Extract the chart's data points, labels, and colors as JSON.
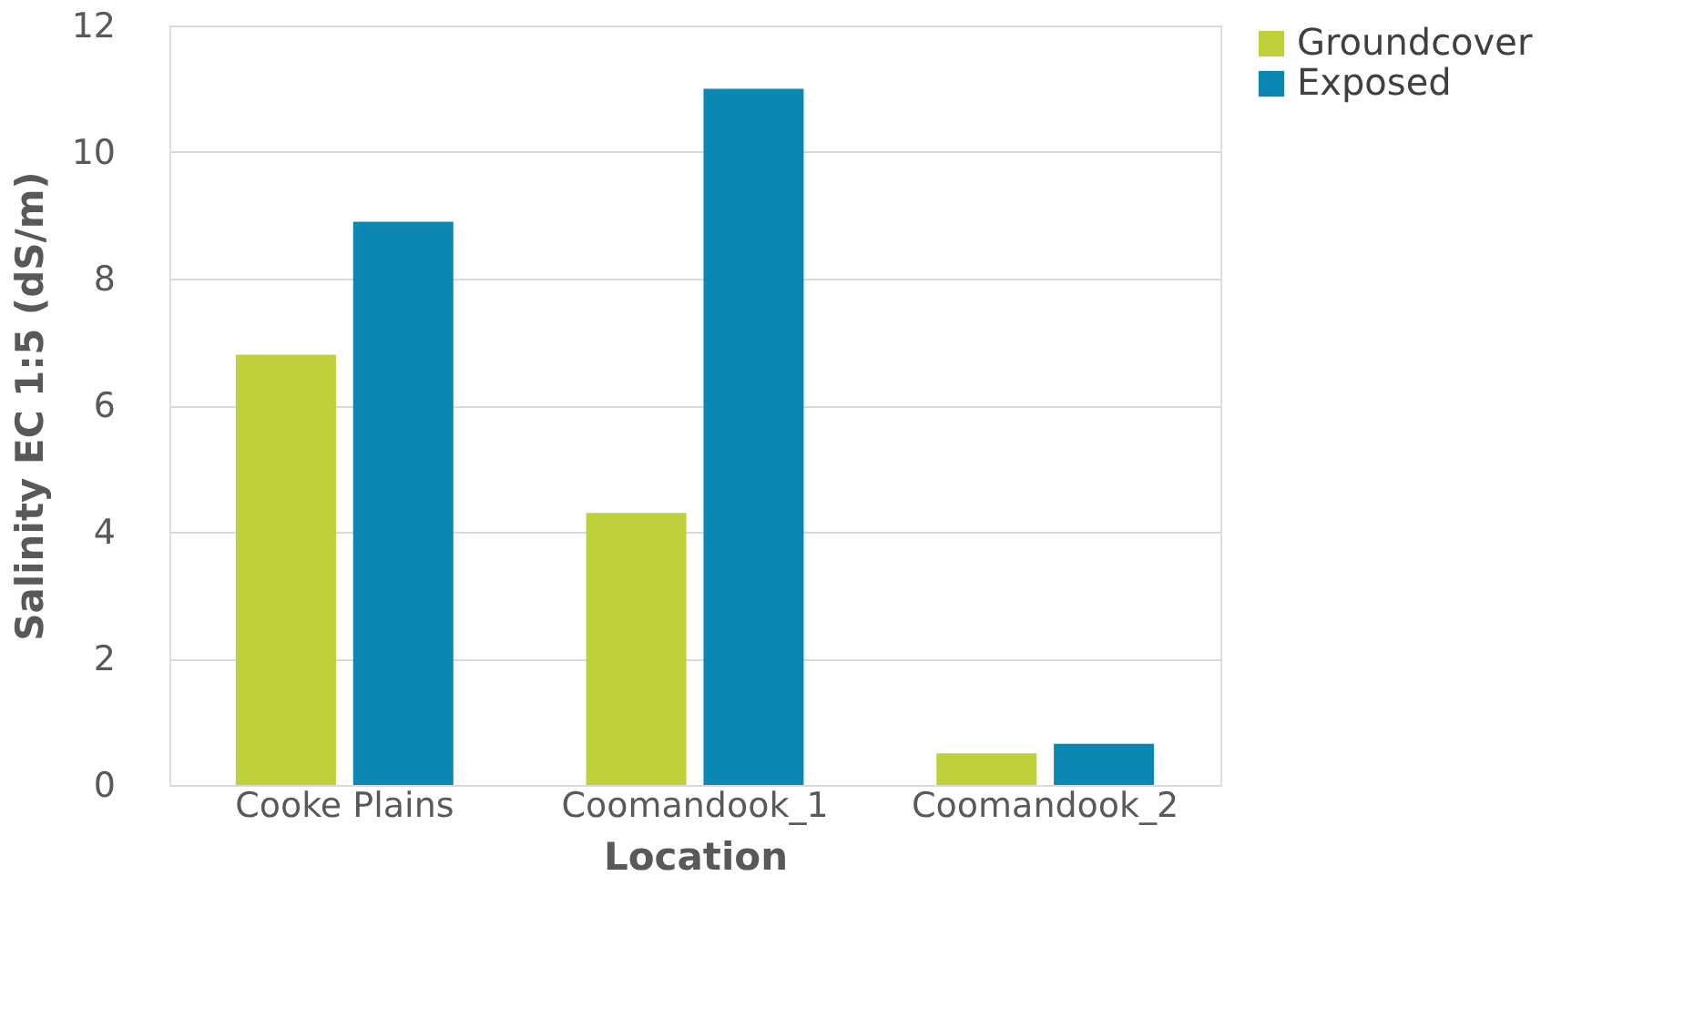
{
  "chart_data": {
    "type": "bar",
    "xlabel": "Location",
    "ylabel": "Salinity EC 1:5 (dS/m)",
    "categories": [
      "Cooke Plains",
      "Coomandook_1",
      "Coomandook_2"
    ],
    "series": [
      {
        "name": "Groundcover",
        "color": "#c0d03a",
        "values": [
          6.8,
          4.3,
          0.5
        ]
      },
      {
        "name": "Exposed",
        "color": "#0a88b3",
        "values": [
          8.9,
          11.0,
          0.65
        ]
      }
    ],
    "ylim": [
      0,
      12
    ],
    "yticks": [
      0,
      2,
      4,
      6,
      8,
      10,
      12
    ],
    "grid": "y",
    "legend": "right"
  }
}
